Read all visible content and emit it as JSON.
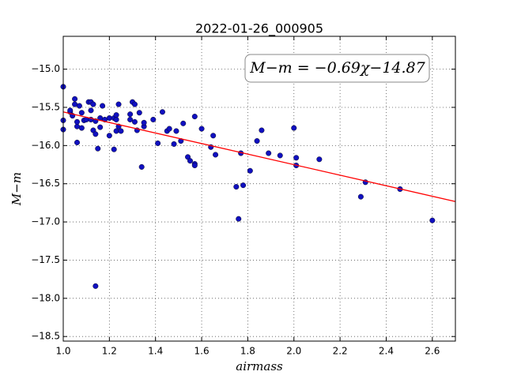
{
  "chart_data": {
    "type": "scatter",
    "title": "2022-01-26_000905",
    "x_label": "airmass",
    "y_label": "M−m",
    "annotation": "M−m = −0.69χ−14.87",
    "grid": true,
    "xlim": [
      1.0,
      2.7
    ],
    "ylim": [
      -18.56,
      -14.57
    ],
    "xticks": [
      {
        "value": 1,
        "label": "1.0"
      },
      1.2,
      1.4,
      1.6,
      1.8,
      {
        "value": 2,
        "label": "2.0"
      },
      2.2,
      2.4,
      2.6
    ],
    "yticks": [
      {
        "value": -15,
        "label": "−15.0"
      },
      {
        "value": -15.5,
        "label": "−15.5"
      },
      {
        "value": -16,
        "label": "−16.0"
      },
      {
        "value": -16.5,
        "label": "−16.5"
      },
      {
        "value": -17,
        "label": "−17.0"
      },
      {
        "value": -17.5,
        "label": "−17.5"
      },
      {
        "value": -18,
        "label": "−18.0"
      },
      {
        "value": -18.5,
        "label": "−18.5"
      }
    ],
    "series": [
      {
        "color": "#1010c0",
        "x": [
          1.0,
          1.0,
          1.0,
          1.03,
          1.03,
          1.04,
          1.05,
          1.05,
          1.06,
          1.06,
          1.06,
          1.07,
          1.08,
          1.08,
          1.09,
          1.1,
          1.11,
          1.12,
          1.12,
          1.12,
          1.13,
          1.13,
          1.14,
          1.14,
          1.14,
          1.15,
          1.16,
          1.16,
          1.17,
          1.18,
          1.2,
          1.2,
          1.22,
          1.22,
          1.23,
          1.23,
          1.23,
          1.24,
          1.24,
          1.25,
          1.29,
          1.29,
          1.3,
          1.31,
          1.31,
          1.32,
          1.33,
          1.34,
          1.35,
          1.35,
          1.39,
          1.41,
          1.43,
          1.45,
          1.46,
          1.48,
          1.49,
          1.51,
          1.52,
          1.54,
          1.55,
          1.57,
          1.57,
          1.57,
          1.6,
          1.64,
          1.65,
          1.66,
          1.75,
          1.76,
          1.77,
          1.78,
          1.81,
          1.84,
          1.86,
          1.89,
          1.94,
          2.0,
          2.01,
          2.01,
          2.11,
          2.29,
          2.31,
          2.46,
          2.6
        ],
        "values": [
          -15.23,
          -15.67,
          -15.79,
          -15.56,
          -15.54,
          -15.61,
          -15.39,
          -15.46,
          -15.75,
          -15.96,
          -15.69,
          -15.48,
          -15.57,
          -15.77,
          -15.67,
          -15.66,
          -15.43,
          -15.66,
          -15.54,
          -15.43,
          -15.8,
          -15.46,
          -15.68,
          -15.85,
          -17.84,
          -16.04,
          -15.64,
          -15.76,
          -15.48,
          -15.66,
          -15.64,
          -15.87,
          -15.64,
          -16.05,
          -15.66,
          -15.6,
          -15.81,
          -15.46,
          -15.75,
          -15.81,
          -15.59,
          -15.66,
          -15.43,
          -15.69,
          -15.46,
          -15.8,
          -15.57,
          -16.28,
          -15.75,
          -15.7,
          -15.66,
          -15.97,
          -15.56,
          -15.81,
          -15.78,
          -15.98,
          -15.81,
          -15.94,
          -15.71,
          -16.15,
          -16.2,
          -16.24,
          -16.26,
          -15.62,
          -15.78,
          -16.02,
          -15.87,
          -16.12,
          -16.54,
          -16.96,
          -16.1,
          -16.52,
          -16.33,
          -15.94,
          -15.8,
          -16.1,
          -16.13,
          -15.77,
          -16.16,
          -16.26,
          -16.18,
          -16.67,
          -16.48,
          -16.57,
          -16.98
        ]
      }
    ],
    "fit": {
      "color": "#ff0000",
      "x": [
        1.0,
        2.7
      ],
      "values": [
        -15.56,
        -16.733
      ]
    }
  }
}
